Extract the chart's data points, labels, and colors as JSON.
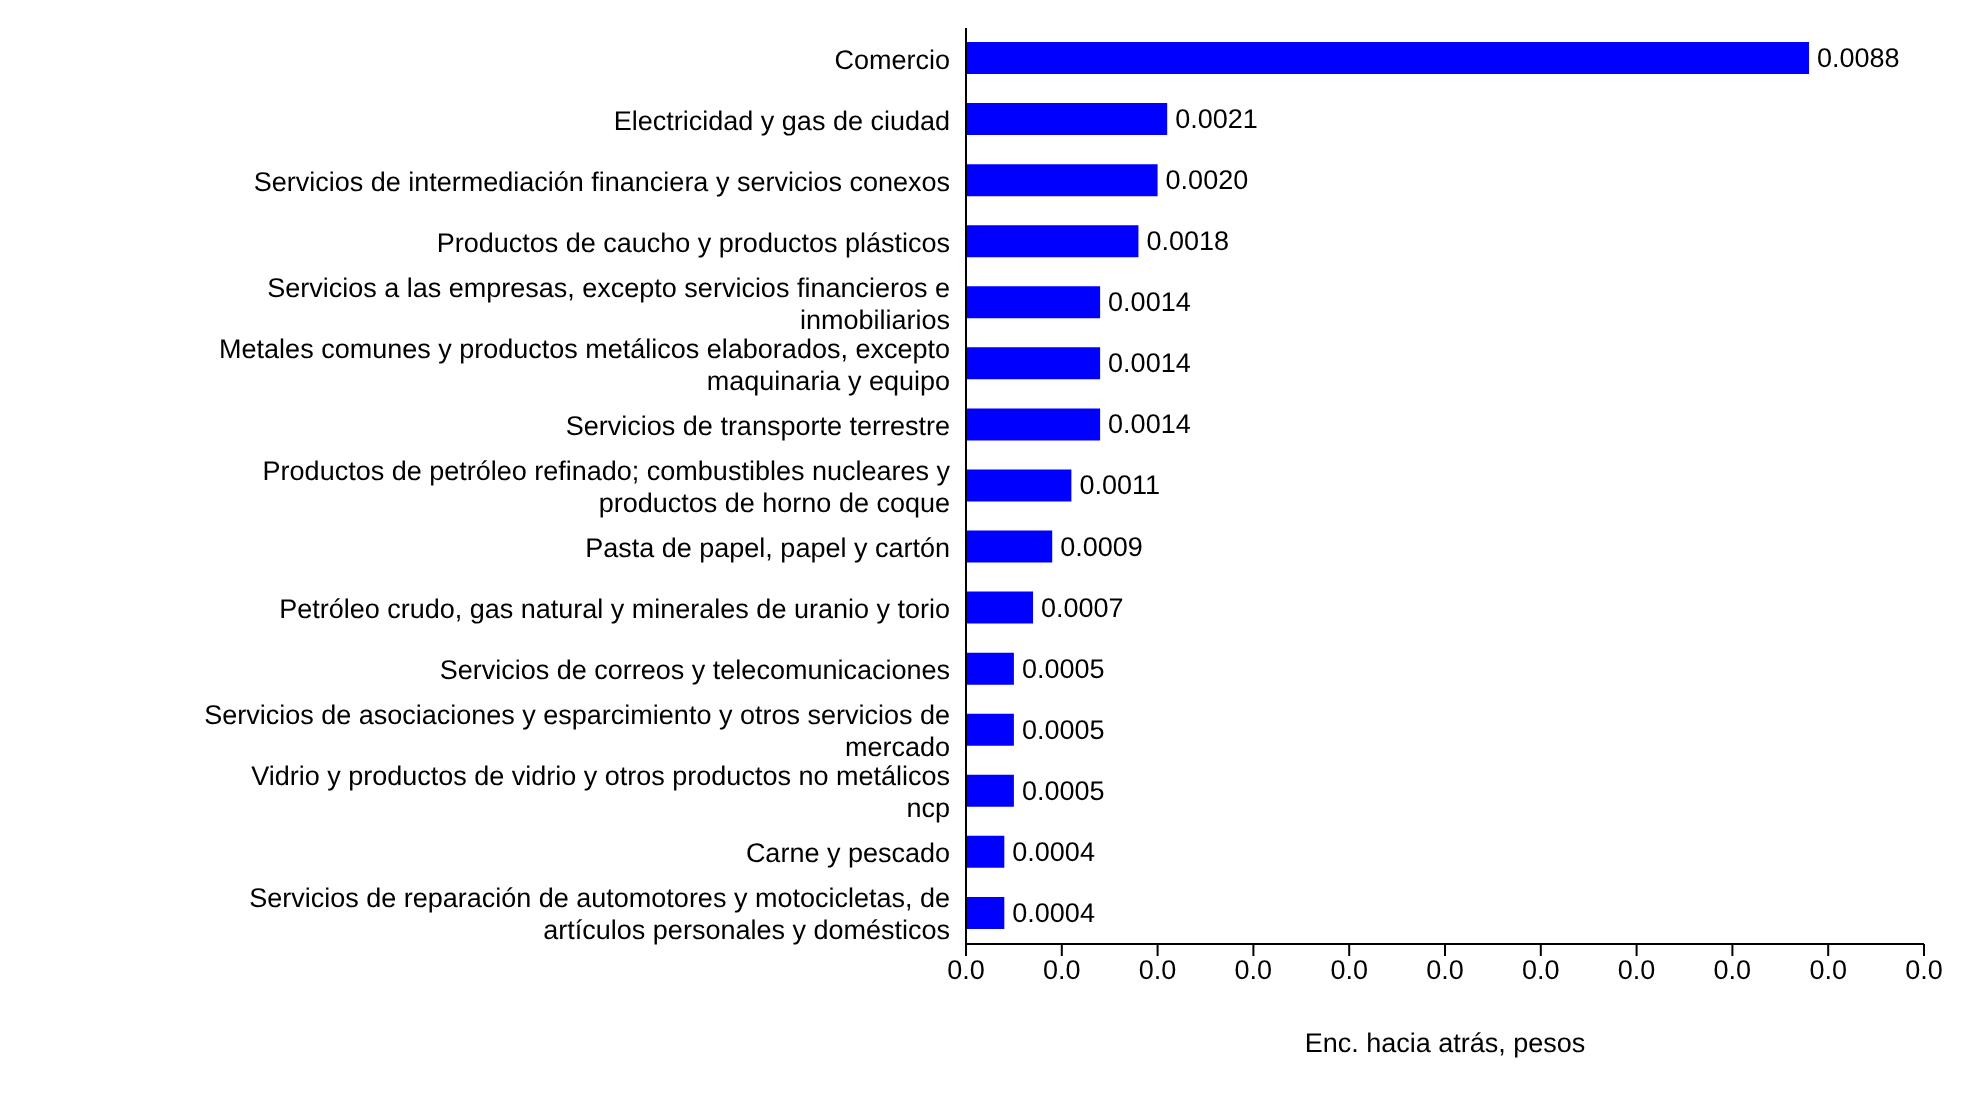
{
  "chart_data": {
    "type": "bar",
    "orientation": "horizontal",
    "xlabel": "Enc. hacia atrás, pesos",
    "categories": [
      "Comercio",
      "Electricidad y gas de ciudad",
      "Servicios de intermediación financiera y servicios conexos",
      "Productos de caucho y productos plásticos",
      "Servicios a las empresas, excepto servicios  financieros e inmobiliarios",
      "Metales comunes y productos metálicos elaborados, excepto maquinaria y equipo",
      "Servicios de transporte terrestre",
      "Productos de petróleo refinado; combustibles nucleares y productos de horno de coque",
      "Pasta de papel, papel y cartón ",
      "Petróleo crudo, gas natural y minerales de uranio y torio",
      "Servicios de correos y telecomunicaciones",
      "Servicios de asociaciones y esparcimiento y otros servicios de mercado",
      "Vidrio y productos de vidrio y otros productos no metálicos ncp",
      "Carne y pescado",
      "Servicios de reparación de automotores y motocicletas, de artículos personales y domésticos"
    ],
    "values": [
      0.0088,
      0.0021,
      0.002,
      0.0018,
      0.0014,
      0.0014,
      0.0014,
      0.0011,
      0.0009,
      0.0007,
      0.0005,
      0.0005,
      0.0005,
      0.0004,
      0.0004
    ],
    "value_labels": [
      "0.0088",
      "0.0021",
      "0.0020",
      "0.0018",
      "0.0014",
      "0.0014",
      "0.0014",
      "0.0011",
      "0.0009",
      "0.0007",
      "0.0005",
      "0.0005",
      "0.0005",
      "0.0004",
      "0.0004"
    ],
    "color": "#0000ff",
    "xlim": [
      0,
      0.01
    ],
    "xticks": [
      {
        "value": 0,
        "label": "0.0"
      },
      {
        "value": 0.001,
        "label": "0.0"
      },
      {
        "value": 0.002,
        "label": "0.0"
      },
      {
        "value": 0.003,
        "label": "0.0"
      },
      {
        "value": 0.004,
        "label": "0.0"
      },
      {
        "value": 0.005,
        "label": "0.0"
      },
      {
        "value": 0.006,
        "label": "0.0"
      },
      {
        "value": 0.007,
        "label": "0.0"
      },
      {
        "value": 0.008,
        "label": "0.0"
      },
      {
        "value": 0.009,
        "label": "0.0"
      },
      {
        "value": 0.01,
        "label": "0.0"
      }
    ],
    "grid": false,
    "legend": false
  }
}
